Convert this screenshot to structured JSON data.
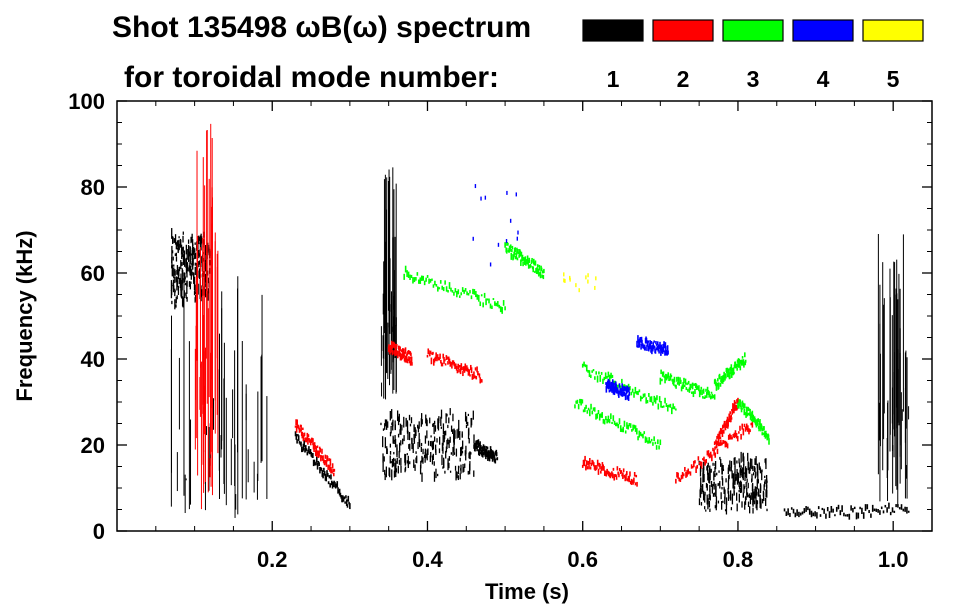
{
  "header": {
    "title_line1": "Shot 135498 ωB(ω) spectrum",
    "title_line2": "for toroidal mode number:"
  },
  "legend": [
    {
      "label": "1",
      "color": "#000000"
    },
    {
      "label": "2",
      "color": "#ff0000"
    },
    {
      "label": "3",
      "color": "#00ff00"
    },
    {
      "label": "4",
      "color": "#0000ff"
    },
    {
      "label": "5",
      "color": "#ffff00"
    }
  ],
  "chart_data": {
    "type": "scatter",
    "title": "Shot 135498 ωB(ω) spectrum",
    "xlabel": "Time (s)",
    "ylabel": "Frequency (kHz)",
    "xlim": [
      0.0,
      1.05
    ],
    "ylim": [
      0,
      100
    ],
    "x_ticks": [
      0.2,
      0.4,
      0.6,
      0.8,
      1.0
    ],
    "x_tick_labels": [
      "0.2",
      "0.4",
      "0.6",
      "0.8",
      "1.0"
    ],
    "y_ticks": [
      0,
      20,
      40,
      60,
      80,
      100
    ],
    "y_tick_labels": [
      "0",
      "20",
      "40",
      "60",
      "80",
      "100"
    ],
    "grid": false,
    "series": [
      {
        "name": "n=1",
        "color": "#000000",
        "features": [
          {
            "kind": "blob",
            "t": [
              0.07,
              0.12
            ],
            "f": [
              52,
              70
            ]
          },
          {
            "kind": "streaks",
            "t": [
              0.07,
              0.2
            ],
            "f": [
              3,
              60
            ]
          },
          {
            "kind": "chirp",
            "t": [
              0.23,
              0.3
            ],
            "f": [
              22,
              6
            ]
          },
          {
            "kind": "blob",
            "t": [
              0.34,
              0.46
            ],
            "f": [
              12,
              28
            ]
          },
          {
            "kind": "chirp",
            "t": [
              0.46,
              0.49
            ],
            "f": [
              20,
              17
            ]
          },
          {
            "kind": "streaks",
            "t": [
              0.34,
              0.36
            ],
            "f": [
              30,
              85
            ]
          },
          {
            "kind": "blob",
            "t": [
              0.75,
              0.84
            ],
            "f": [
              4,
              18
            ]
          },
          {
            "kind": "chirp",
            "t": [
              0.86,
              1.02
            ],
            "f": [
              4,
              5
            ]
          },
          {
            "kind": "streaks",
            "t": [
              0.98,
              1.02
            ],
            "f": [
              5,
              70
            ]
          }
        ]
      },
      {
        "name": "n=2",
        "color": "#ff0000",
        "features": [
          {
            "kind": "chirp",
            "t": [
              0.23,
              0.28
            ],
            "f": [
              25,
              14
            ]
          },
          {
            "kind": "chirp",
            "t": [
              0.35,
              0.38
            ],
            "f": [
              43,
              40
            ]
          },
          {
            "kind": "chirp",
            "t": [
              0.4,
              0.47
            ],
            "f": [
              41,
              36
            ]
          },
          {
            "kind": "chirp",
            "t": [
              0.6,
              0.67
            ],
            "f": [
              16,
              12
            ]
          },
          {
            "kind": "chirp",
            "t": [
              0.72,
              0.82
            ],
            "f": [
              12,
              25
            ]
          },
          {
            "kind": "chirp",
            "t": [
              0.77,
              0.8
            ],
            "f": [
              20,
              30
            ]
          },
          {
            "kind": "streaks",
            "t": [
              0.1,
              0.13
            ],
            "f": [
              5,
              95
            ]
          }
        ]
      },
      {
        "name": "n=3",
        "color": "#00ff00",
        "features": [
          {
            "kind": "chirp",
            "t": [
              0.37,
              0.5
            ],
            "f": [
              60,
              52
            ]
          },
          {
            "kind": "chirp",
            "t": [
              0.5,
              0.55
            ],
            "f": [
              66,
              60
            ]
          },
          {
            "kind": "chirp",
            "t": [
              0.59,
              0.7
            ],
            "f": [
              30,
              20
            ]
          },
          {
            "kind": "chirp",
            "t": [
              0.6,
              0.72
            ],
            "f": [
              38,
              28
            ]
          },
          {
            "kind": "chirp",
            "t": [
              0.7,
              0.77
            ],
            "f": [
              36,
              31
            ]
          },
          {
            "kind": "chirp",
            "t": [
              0.77,
              0.81
            ],
            "f": [
              34,
              40
            ]
          },
          {
            "kind": "chirp",
            "t": [
              0.8,
              0.84
            ],
            "f": [
              30,
              22
            ]
          }
        ]
      },
      {
        "name": "n=4",
        "color": "#0000ff",
        "features": [
          {
            "kind": "chirp",
            "t": [
              0.67,
              0.71
            ],
            "f": [
              44,
              42
            ]
          },
          {
            "kind": "chirp",
            "t": [
              0.63,
              0.66
            ],
            "f": [
              34,
              32
            ]
          },
          {
            "kind": "dots",
            "t": [
              0.45,
              0.53
            ],
            "f": [
              60,
              83
            ]
          }
        ]
      },
      {
        "name": "n=5",
        "color": "#ffff00",
        "features": [
          {
            "kind": "dots",
            "t": [
              0.56,
              0.62
            ],
            "f": [
              56,
              60
            ]
          }
        ]
      }
    ]
  }
}
